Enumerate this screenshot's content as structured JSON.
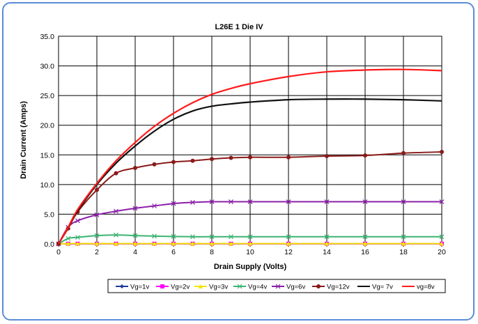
{
  "chart_data": {
    "type": "line",
    "title": "L26E 1 Die IV",
    "xlabel": "Drain  Supply  (Volts)",
    "ylabel": "Drain Current  (Amps)",
    "xlim": [
      0,
      20
    ],
    "ylim": [
      0,
      35
    ],
    "xticks": [
      "0",
      "2",
      "4",
      "6",
      "8",
      "10",
      "12",
      "14",
      "16",
      "18",
      "20"
    ],
    "yticks": [
      "0.0",
      "5.0",
      "10.0",
      "15.0",
      "20.0",
      "25.0",
      "30.0",
      "35.0"
    ],
    "grid": true,
    "legend_position": "bottom",
    "series": [
      {
        "name": "Vg=1v",
        "color": "#1f3a9c",
        "marker": "diamond",
        "x": [
          0,
          0.5,
          1,
          2,
          3,
          4,
          5,
          6,
          7,
          8,
          9,
          10,
          12,
          14,
          16,
          18,
          20
        ],
        "y": [
          0,
          0,
          0,
          0,
          0,
          0,
          0,
          0,
          0,
          0,
          0,
          0,
          0,
          0,
          0,
          0,
          0
        ]
      },
      {
        "name": "Vg=2v",
        "color": "#ff00ff",
        "marker": "square",
        "x": [
          0,
          0.5,
          1,
          2,
          3,
          4,
          5,
          6,
          7,
          8,
          9,
          10,
          12,
          14,
          16,
          18,
          20
        ],
        "y": [
          0,
          0.02,
          0.02,
          0.02,
          0.02,
          0.02,
          0.02,
          0.02,
          0.02,
          0.02,
          0.02,
          0.02,
          0.02,
          0.02,
          0.02,
          0.02,
          0.02
        ]
      },
      {
        "name": "Vg=3v",
        "color": "#f2e600",
        "marker": "triangle",
        "x": [
          0,
          0.5,
          1,
          2,
          3,
          4,
          5,
          6,
          7,
          8,
          9,
          10,
          12,
          14,
          16,
          18,
          20
        ],
        "y": [
          0,
          0.05,
          0.05,
          0.05,
          0.05,
          0.05,
          0.05,
          0.05,
          0.05,
          0.05,
          0.05,
          0.05,
          0.05,
          0.05,
          0.05,
          0.05,
          0.05
        ]
      },
      {
        "name": "Vg=4v",
        "color": "#3cb371",
        "marker": "x",
        "x": [
          0,
          0.5,
          1,
          2,
          3,
          4,
          5,
          6,
          7,
          8,
          9,
          10,
          12,
          14,
          16,
          18,
          20
        ],
        "y": [
          0,
          0.9,
          1.1,
          1.4,
          1.5,
          1.4,
          1.3,
          1.25,
          1.2,
          1.2,
          1.2,
          1.2,
          1.2,
          1.2,
          1.2,
          1.2,
          1.2
        ]
      },
      {
        "name": "Vg=6v",
        "color": "#8b1fa9",
        "marker": "x",
        "x": [
          0,
          0.5,
          1,
          2,
          3,
          4,
          5,
          6,
          7,
          8,
          9,
          10,
          12,
          14,
          16,
          18,
          20
        ],
        "y": [
          0,
          2.8,
          3.9,
          4.9,
          5.5,
          6.0,
          6.4,
          6.8,
          7.0,
          7.1,
          7.1,
          7.1,
          7.1,
          7.1,
          7.1,
          7.1,
          7.1
        ]
      },
      {
        "name": "Vg=12v",
        "color": "#8b1a1a",
        "marker": "circle",
        "x": [
          0,
          0.5,
          1,
          2,
          3,
          4,
          5,
          6,
          7,
          8,
          9,
          10,
          12,
          14,
          16,
          18,
          20
        ],
        "y": [
          0,
          2.6,
          5.4,
          9.1,
          11.9,
          12.8,
          13.4,
          13.8,
          14.0,
          14.3,
          14.5,
          14.6,
          14.6,
          14.8,
          14.9,
          15.3,
          15.5
        ]
      },
      {
        "name": "Vg= 7v",
        "color": "#111111",
        "marker": "none",
        "x": [
          0,
          0.5,
          1,
          2,
          3,
          4,
          5,
          6,
          7,
          8,
          9,
          10,
          12,
          14,
          16,
          18,
          20
        ],
        "y": [
          0,
          2.8,
          5.6,
          10.0,
          13.6,
          16.5,
          19.0,
          21.0,
          22.4,
          23.2,
          23.6,
          23.9,
          24.3,
          24.4,
          24.4,
          24.3,
          24.1
        ]
      },
      {
        "name": "vg=8v",
        "color": "#ff1a1a",
        "marker": "none",
        "x": [
          0,
          0.5,
          1,
          2,
          3,
          4,
          5,
          6,
          7,
          8,
          9,
          10,
          12,
          14,
          16,
          18,
          20
        ],
        "y": [
          0,
          2.8,
          5.8,
          10.2,
          14.0,
          17.1,
          19.8,
          22.0,
          23.8,
          25.2,
          26.2,
          27.0,
          28.2,
          29.0,
          29.3,
          29.4,
          29.2
        ]
      }
    ]
  }
}
